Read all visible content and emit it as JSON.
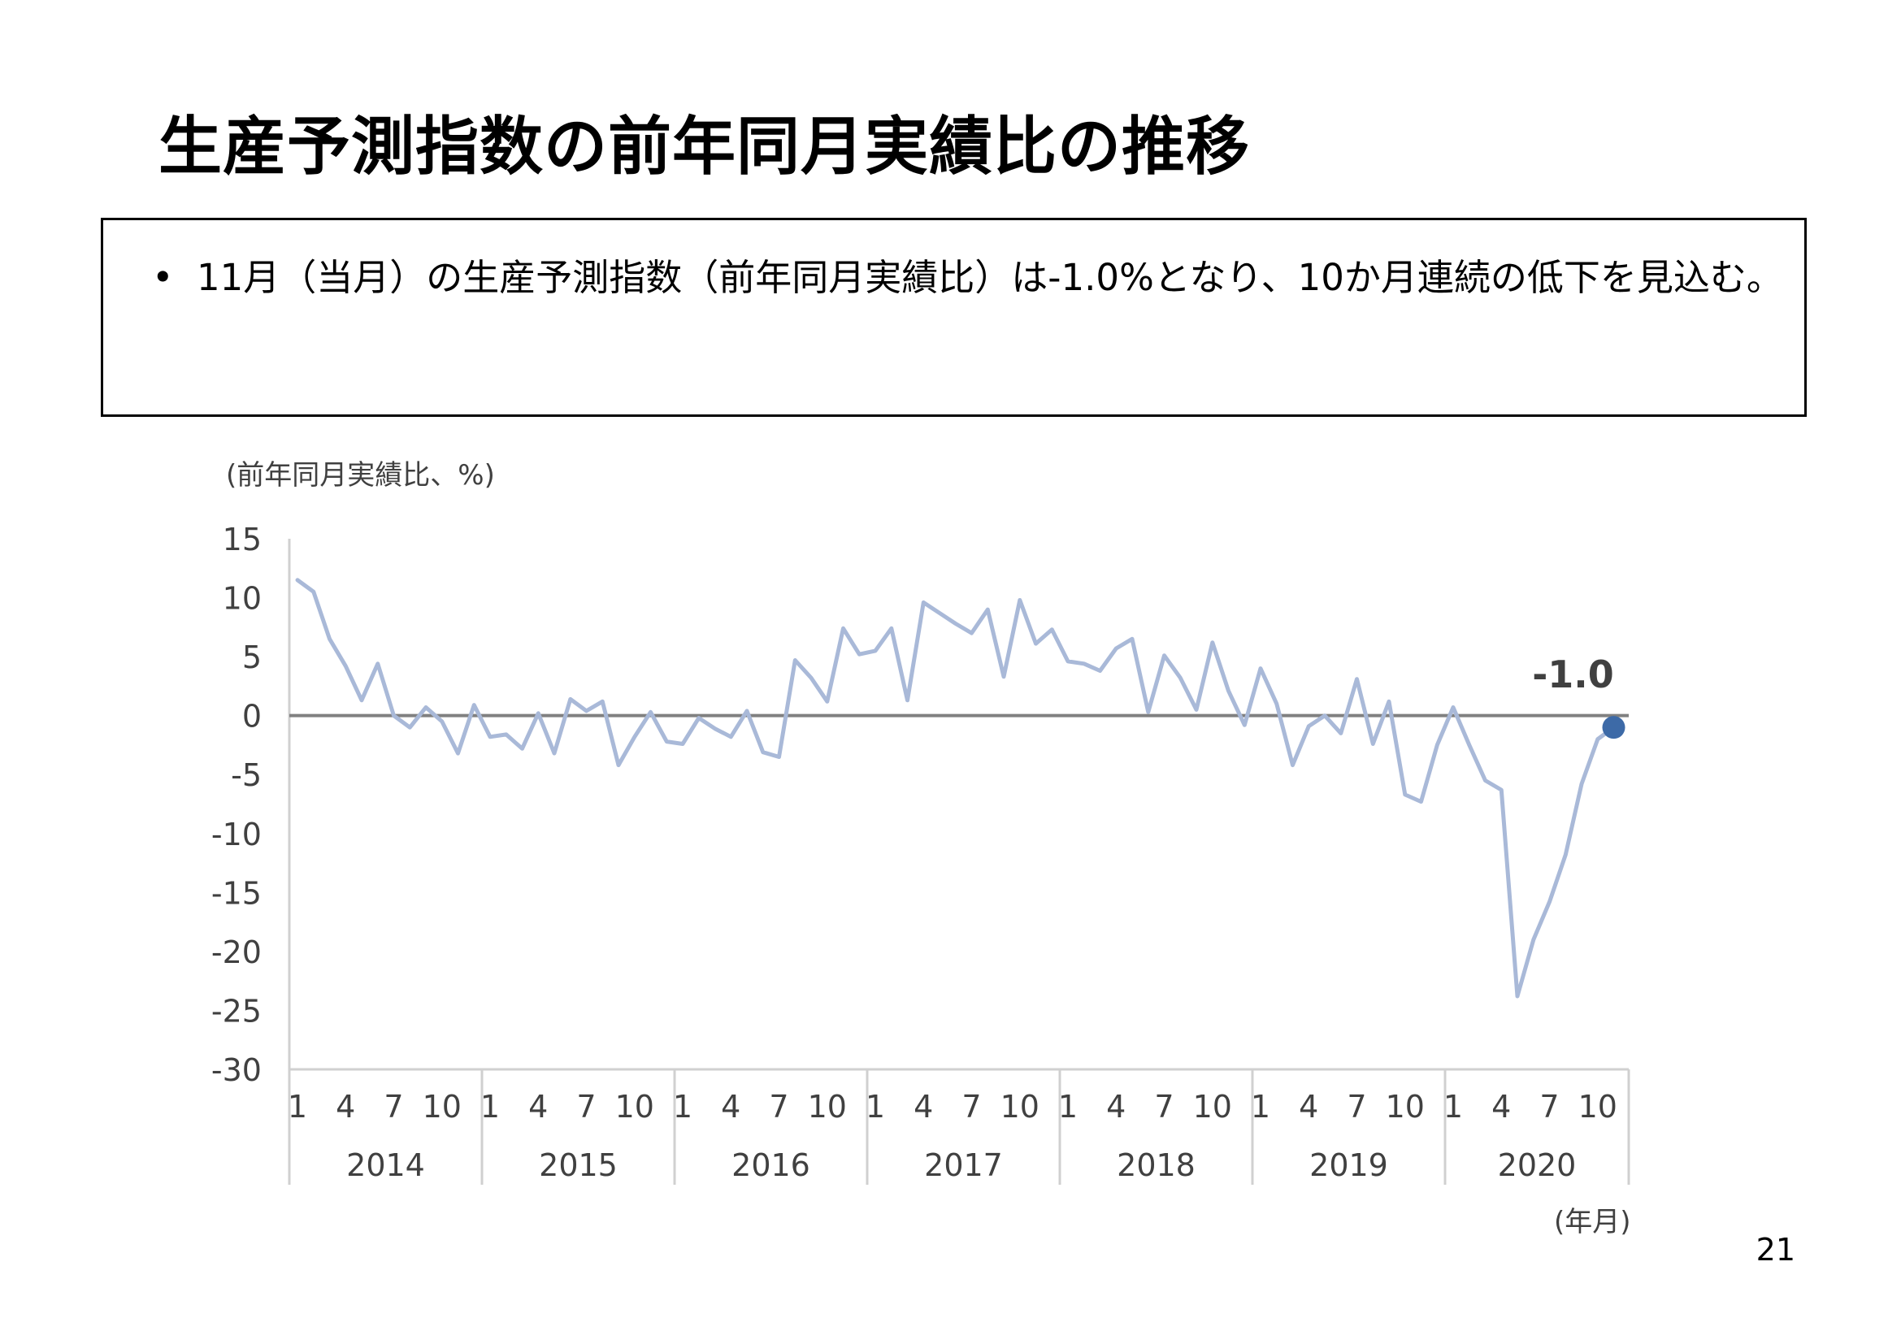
{
  "title": "生産予測指数の前年同月実績比の推移",
  "summary": {
    "bullet": "•",
    "text": "11月（当月）の生産予測指数（前年同月実績比）は-1.0%となり、10か月連続の低下を見込む。"
  },
  "page_number": "21",
  "chart_data": {
    "type": "line",
    "ylabel": "(前年同月実績比、%)",
    "xlabel": "(年月)",
    "ylim": [
      -30,
      15
    ],
    "yticks": [
      "15",
      "10",
      "5",
      "0",
      "-5",
      "-10",
      "-15",
      "-20",
      "-25",
      "-30"
    ],
    "month_ticks": [
      "1",
      "4",
      "7",
      "10"
    ],
    "years": [
      "2014",
      "2015",
      "2016",
      "2017",
      "2018",
      "2019",
      "2020"
    ],
    "zero_line": true,
    "line_color": "#a9b9d8",
    "marker_color": "#3d6aa7",
    "annotation": "-1.0",
    "series": [
      {
        "values": [
          11.5,
          10.5,
          6.5,
          4.2,
          1.3,
          4.4,
          0.0,
          -1.0,
          0.7,
          -0.5,
          -3.2,
          0.9,
          -1.8,
          -1.6,
          -2.8,
          0.2,
          -3.2,
          1.4,
          0.4,
          1.2,
          -4.2,
          -1.8,
          0.3,
          -2.2,
          -2.4,
          -0.2,
          -1.1,
          -1.8,
          0.4,
          -3.1,
          -3.5,
          4.7,
          3.2,
          1.2,
          7.4,
          5.2,
          5.5,
          7.4,
          1.3,
          9.6,
          8.7,
          7.8,
          7.0,
          9.0,
          3.3,
          9.8,
          6.1,
          7.3,
          4.6,
          4.4,
          3.8,
          5.7,
          6.5,
          0.3,
          5.1,
          3.2,
          0.5,
          6.2,
          2.1,
          -0.8,
          4.0,
          1.0,
          -4.2,
          -0.9,
          0.0,
          -1.5,
          3.1,
          -2.4,
          1.2,
          -6.7,
          -7.3,
          -2.5,
          0.7,
          -2.5,
          -5.5,
          -6.3,
          -23.8,
          -19.0,
          -15.8,
          -11.8,
          -5.8,
          -2.0,
          -1.0
        ]
      }
    ]
  }
}
